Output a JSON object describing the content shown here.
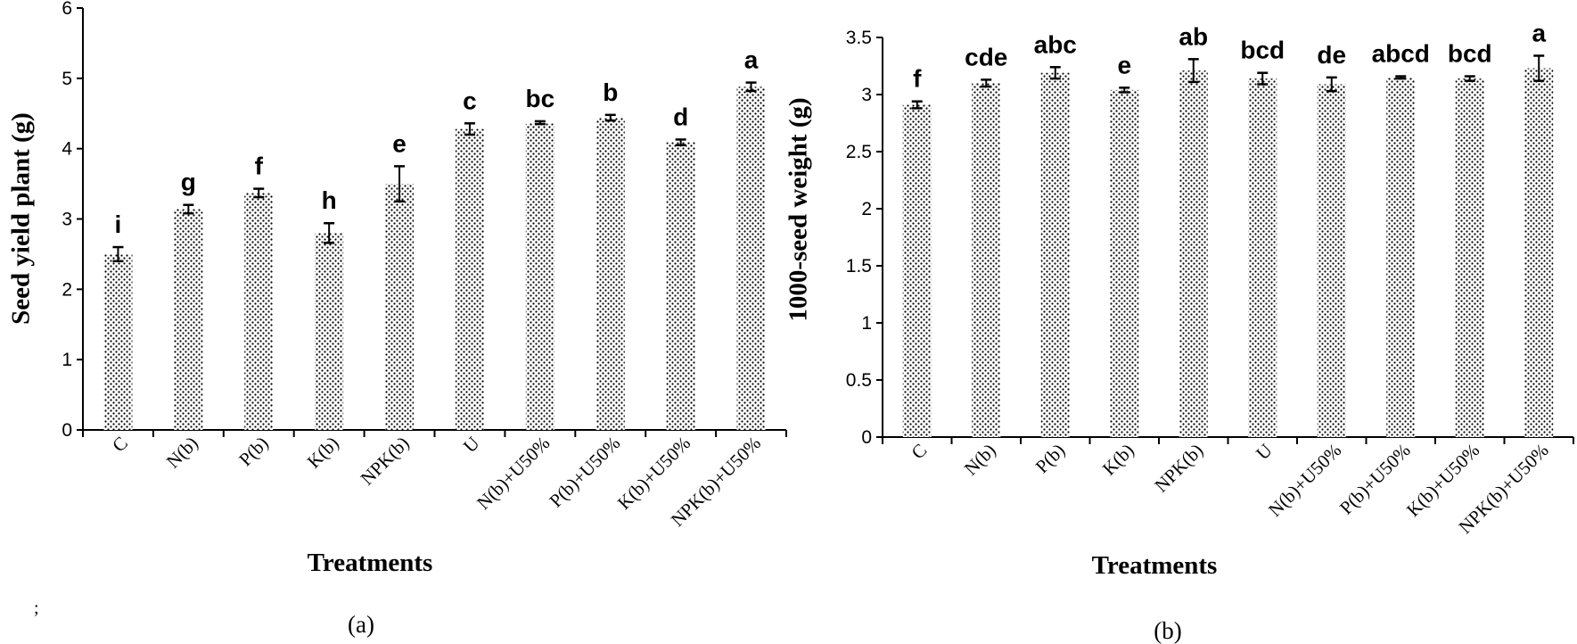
{
  "chart_data": [
    {
      "type": "bar",
      "panel_label": "(a)",
      "categories": [
        "C",
        "N(b)",
        "P(b)",
        "K(b)",
        "NPK(b)",
        "U",
        "N(b)+U50%",
        "P(b)+U50%",
        "K(b)+U50%",
        "NPK(b)+U50%"
      ],
      "values": [
        2.5,
        3.14,
        3.37,
        2.8,
        3.5,
        4.28,
        4.37,
        4.44,
        4.09,
        4.88
      ],
      "errors": [
        0.1,
        0.06,
        0.06,
        0.14,
        0.25,
        0.08,
        0.02,
        0.04,
        0.04,
        0.06
      ],
      "significance_letters": [
        "i",
        "g",
        "f",
        "h",
        "e",
        "c",
        "bc",
        "b",
        "d",
        "a"
      ],
      "xlabel": "Treatments",
      "ylabel": "Seed yield plant (g)",
      "ylim": [
        0,
        6
      ],
      "yticks": [
        0,
        1,
        2,
        3,
        4,
        5,
        6
      ],
      "grid": false,
      "legend": "none"
    },
    {
      "type": "bar",
      "panel_label": "(b)",
      "categories": [
        "C",
        "N(b)",
        "P(b)",
        "K(b)",
        "NPK(b)",
        "U",
        "N(b)+U50%",
        "P(b)+U50%",
        "K(b)+U50%",
        "NPK(b)+U50%"
      ],
      "values": [
        2.91,
        3.1,
        3.19,
        3.04,
        3.21,
        3.14,
        3.09,
        3.15,
        3.14,
        3.23
      ],
      "errors": [
        0.03,
        0.03,
        0.05,
        0.02,
        0.1,
        0.05,
        0.06,
        0.01,
        0.02,
        0.11
      ],
      "significance_letters": [
        "f",
        "cde",
        "abc",
        "e",
        "ab",
        "bcd",
        "de",
        "abcd",
        "bcd",
        "a"
      ],
      "xlabel": "Treatments",
      "ylabel": "1000-seed weight (g)",
      "ylim": [
        0,
        3.5
      ],
      "yticks": [
        0,
        0.5,
        1,
        1.5,
        2,
        2.5,
        3,
        3.5
      ],
      "grid": false,
      "legend": "none"
    }
  ],
  "stray_mark": ";",
  "colors": {
    "bar_fill_dots": "#000000",
    "bar_background": "#ffffff",
    "axis": "#000000"
  }
}
